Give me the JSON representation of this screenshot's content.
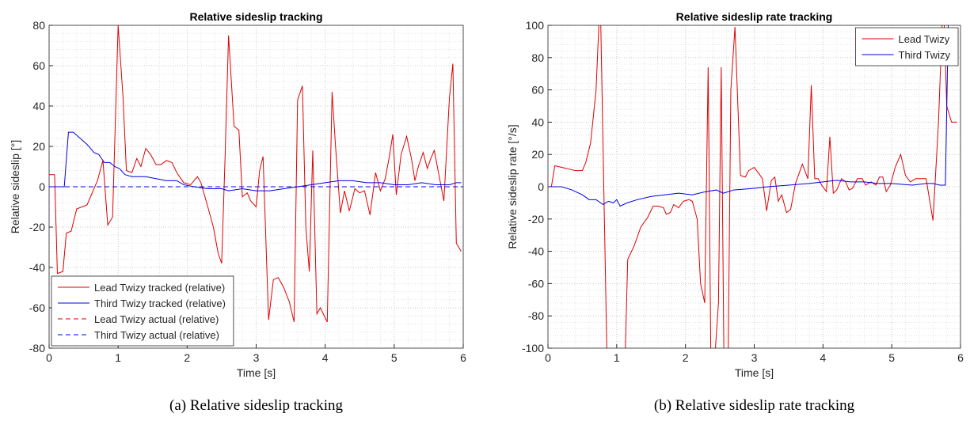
{
  "chart_data": [
    {
      "type": "line",
      "title": "Relative sideslip tracking",
      "xlabel": "Time [s]",
      "ylabel": "Relative sideslip [°]",
      "caption": "(a) Relative sideslip tracking",
      "xlim": [
        0,
        6
      ],
      "ylim": [
        -80,
        80
      ],
      "xticks": [
        0,
        1,
        2,
        3,
        4,
        5,
        6
      ],
      "yticks": [
        -80,
        -60,
        -40,
        -20,
        0,
        20,
        40,
        60,
        80
      ],
      "grid": true,
      "legend": "lower left",
      "series": [
        {
          "name": "Lead Twizy tracked (relative)",
          "color": "#e00000",
          "dashed": false,
          "x": [
            0,
            0.08,
            0.12,
            0.2,
            0.25,
            0.32,
            0.4,
            0.55,
            0.7,
            0.78,
            0.85,
            0.92,
            1.0,
            1.07,
            1.12,
            1.2,
            1.27,
            1.33,
            1.4,
            1.47,
            1.55,
            1.62,
            1.7,
            1.78,
            1.85,
            1.95,
            2.05,
            2.15,
            2.2,
            2.3,
            2.38,
            2.45,
            2.5,
            2.55,
            2.6,
            2.68,
            2.75,
            2.8,
            2.87,
            2.92,
            3.0,
            3.05,
            3.1,
            3.18,
            3.25,
            3.32,
            3.4,
            3.48,
            3.55,
            3.6,
            3.67,
            3.72,
            3.77,
            3.82,
            3.88,
            3.93,
            4.03,
            4.1,
            4.15,
            4.22,
            4.28,
            4.35,
            4.43,
            4.5,
            4.57,
            4.65,
            4.73,
            4.8,
            4.87,
            4.93,
            4.98,
            5.03,
            5.1,
            5.18,
            5.25,
            5.3,
            5.35,
            5.42,
            5.48,
            5.53,
            5.58,
            5.63,
            5.72,
            5.8,
            5.85,
            5.9,
            5.97
          ],
          "values": [
            6,
            6,
            -43,
            -42,
            -23,
            -22,
            -11,
            -9,
            3,
            13,
            -19,
            -15,
            80,
            45,
            8,
            7,
            14,
            10,
            19,
            16,
            11,
            11,
            13,
            12,
            7,
            2,
            1,
            5,
            2,
            -10,
            -20,
            -33,
            -38,
            15,
            75,
            30,
            28,
            -5,
            -3,
            -7,
            -10,
            8,
            15,
            -66,
            -46,
            -45,
            -50,
            -57,
            -67,
            43,
            50,
            -20,
            -42,
            18,
            -63,
            -60,
            -67,
            47,
            20,
            -13,
            -2,
            -12,
            -1,
            -3,
            -2,
            -14,
            7,
            -2,
            4,
            15,
            26,
            -4,
            16,
            25,
            14,
            3,
            10,
            17,
            9,
            14,
            18,
            9,
            -7,
            44,
            61,
            -28,
            -32
          ]
        },
        {
          "name": "Third Twizy tracked (relative)",
          "color": "#0000e0",
          "dashed": false,
          "x": [
            0,
            0.22,
            0.28,
            0.35,
            0.45,
            0.55,
            0.65,
            0.72,
            0.8,
            0.88,
            0.95,
            1.02,
            1.1,
            1.2,
            1.4,
            1.55,
            1.7,
            1.85,
            1.95,
            2.1,
            2.3,
            2.5,
            2.6,
            2.8,
            3.0,
            3.2,
            3.4,
            3.6,
            3.8,
            4.0,
            4.2,
            4.4,
            4.6,
            4.8,
            5.0,
            5.2,
            5.4,
            5.6,
            5.8,
            5.9,
            5.97
          ],
          "values": [
            0,
            0,
            27,
            27,
            24,
            21,
            17,
            16,
            12,
            12,
            10,
            9,
            6,
            5,
            5,
            4,
            3,
            3,
            1,
            0,
            -1,
            -1,
            -2,
            -1,
            -2,
            -2,
            -1,
            0,
            1,
            2,
            3,
            3,
            2,
            2,
            1,
            1,
            2,
            1,
            1,
            2,
            2
          ]
        },
        {
          "name": "Lead Twizy actual (relative)",
          "color": "#e00000",
          "dashed": true,
          "x": [
            0,
            6
          ],
          "values": [
            0,
            0
          ]
        },
        {
          "name": "Third Twizy actual (relative)",
          "color": "#0000e0",
          "dashed": true,
          "x": [
            0,
            6
          ],
          "values": [
            0,
            0
          ]
        }
      ]
    },
    {
      "type": "line",
      "title": "Relative sideslip rate tracking",
      "xlabel": "Time [s]",
      "ylabel": "Relative sideslip rate [°/s]",
      "caption": "(b) Relative sideslip rate tracking",
      "xlim": [
        0,
        6
      ],
      "ylim": [
        -100,
        100
      ],
      "xticks": [
        0,
        1,
        2,
        3,
        4,
        5,
        6
      ],
      "yticks": [
        -100,
        -80,
        -60,
        -40,
        -20,
        0,
        20,
        40,
        60,
        80,
        100
      ],
      "grid": true,
      "legend": "upper right",
      "series": [
        {
          "name": "Lead Twizy",
          "color": "#e00000",
          "dashed": false,
          "x": [
            0.05,
            0.1,
            0.2,
            0.3,
            0.4,
            0.5,
            0.55,
            0.62,
            0.7,
            0.76,
            0.86,
            1.12,
            1.16,
            1.25,
            1.35,
            1.45,
            1.53,
            1.6,
            1.68,
            1.72,
            1.78,
            1.83,
            1.9,
            1.97,
            2.05,
            2.1,
            2.17,
            2.22,
            2.28,
            2.33,
            2.37,
            2.42,
            2.48,
            2.52,
            2.56,
            2.62,
            2.66,
            2.72,
            2.8,
            2.87,
            2.92,
            3.0,
            3.07,
            3.12,
            3.18,
            3.25,
            3.3,
            3.35,
            3.4,
            3.47,
            3.53,
            3.6,
            3.7,
            3.78,
            3.83,
            3.88,
            3.93,
            3.98,
            4.05,
            4.1,
            4.15,
            4.2,
            4.27,
            4.33,
            4.38,
            4.43,
            4.5,
            4.57,
            4.62,
            4.7,
            4.77,
            4.82,
            4.87,
            4.92,
            4.98,
            5.05,
            5.13,
            5.2,
            5.27,
            5.35,
            5.42,
            5.5,
            5.6,
            5.68,
            5.75,
            5.8,
            5.87,
            5.95
          ],
          "values": [
            0,
            13,
            12,
            11,
            10,
            10,
            15,
            27,
            60,
            120,
            -110,
            -110,
            -45,
            -37,
            -25,
            -19,
            -12,
            -12,
            -13,
            -17,
            -16,
            -11,
            -13,
            -9,
            -8,
            -9,
            -20,
            -60,
            -72,
            74,
            -110,
            -110,
            -72,
            74,
            -110,
            -110,
            60,
            99,
            7,
            6,
            10,
            12,
            8,
            5,
            -15,
            4,
            6,
            -9,
            -5,
            -16,
            -14,
            2,
            14,
            5,
            63,
            5,
            5,
            1,
            -3,
            31,
            -4,
            -2,
            5,
            3,
            -2,
            -1,
            5,
            5,
            1,
            3,
            1,
            6,
            6,
            -3,
            1,
            12,
            20,
            7,
            3,
            5,
            5,
            5,
            -21,
            40,
            120,
            50,
            40,
            40
          ]
        },
        {
          "name": "Third Twizy",
          "color": "#0000e0",
          "dashed": false,
          "x": [
            0,
            0.2,
            0.35,
            0.5,
            0.6,
            0.7,
            0.8,
            0.88,
            0.95,
            1.0,
            1.05,
            1.15,
            1.3,
            1.5,
            1.7,
            1.9,
            2.1,
            2.3,
            2.45,
            2.55,
            2.7,
            3.0,
            3.2,
            3.5,
            3.8,
            4.0,
            4.2,
            4.4,
            4.6,
            4.8,
            5.0,
            5.3,
            5.5,
            5.6,
            5.7,
            5.78,
            5.83
          ],
          "values": [
            0,
            0,
            -2,
            -5,
            -8,
            -8,
            -11,
            -9,
            -10,
            -8,
            -12,
            -10,
            -8,
            -6,
            -5,
            -4,
            -5,
            -3,
            -2,
            -4,
            -2,
            -1,
            0,
            1,
            2,
            3,
            4,
            3,
            3,
            2,
            2,
            1,
            2,
            2,
            1,
            1,
            120
          ]
        }
      ]
    }
  ]
}
